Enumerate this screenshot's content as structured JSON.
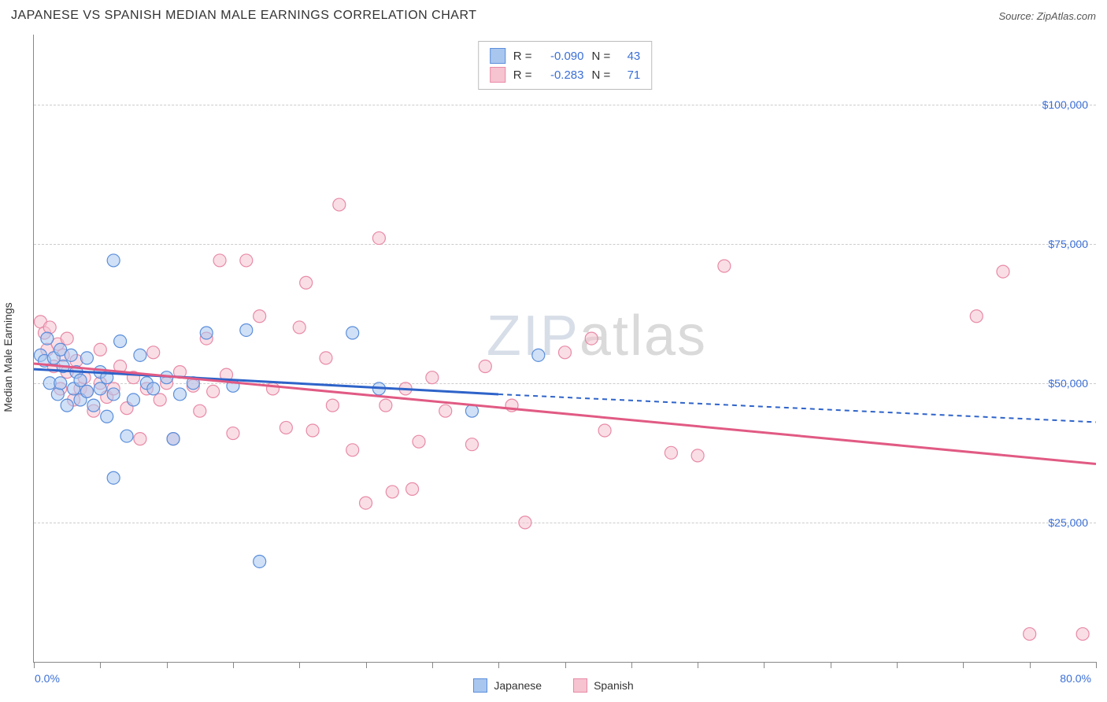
{
  "header": {
    "title": "JAPANESE VS SPANISH MEDIAN MALE EARNINGS CORRELATION CHART",
    "source_prefix": "Source: ",
    "source": "ZipAtlas.com"
  },
  "chart": {
    "type": "scatter",
    "ylabel": "Median Male Earnings",
    "xlim": [
      0,
      80
    ],
    "ylim": [
      0,
      112500
    ],
    "x_tick_positions": [
      0,
      5,
      10,
      15,
      20,
      25,
      30,
      35,
      40,
      45,
      50,
      55,
      60,
      65,
      70,
      75,
      80
    ],
    "x_tick_label_min": "0.0%",
    "x_tick_label_max": "80.0%",
    "y_gridlines": [
      {
        "value": 25000,
        "label": "$25,000"
      },
      {
        "value": 50000,
        "label": "$50,000"
      },
      {
        "value": 75000,
        "label": "$75,000"
      },
      {
        "value": 100000,
        "label": "$100,000"
      }
    ],
    "grid_color": "#cccccc",
    "axis_color": "#888888",
    "background_color": "#ffffff",
    "tick_label_color": "#3b6fd6",
    "marker_radius": 8,
    "marker_opacity": 0.55,
    "marker_stroke_width": 1.2,
    "series": [
      {
        "name": "Japanese",
        "fill": "#a9c6ef",
        "stroke": "#5a8edb",
        "line_color": "#2e63c9",
        "R": "-0.090",
        "N": "43",
        "regression": {
          "x1": 0,
          "y1": 52500,
          "x2": 35,
          "y2": 48000,
          "extend_x": 80,
          "extend_y": 43000
        },
        "points": [
          {
            "x": 6,
            "y": 72000
          },
          {
            "x": 0.5,
            "y": 55000
          },
          {
            "x": 0.8,
            "y": 54000
          },
          {
            "x": 1,
            "y": 58000
          },
          {
            "x": 1.2,
            "y": 50000
          },
          {
            "x": 1.5,
            "y": 54500
          },
          {
            "x": 1.8,
            "y": 48000
          },
          {
            "x": 2,
            "y": 56000
          },
          {
            "x": 2,
            "y": 50000
          },
          {
            "x": 2.2,
            "y": 53000
          },
          {
            "x": 2.5,
            "y": 46000
          },
          {
            "x": 2.8,
            "y": 55000
          },
          {
            "x": 3,
            "y": 49000
          },
          {
            "x": 3.2,
            "y": 52000
          },
          {
            "x": 3.5,
            "y": 47000
          },
          {
            "x": 3.5,
            "y": 50500
          },
          {
            "x": 4,
            "y": 54500
          },
          {
            "x": 4,
            "y": 48500
          },
          {
            "x": 4.5,
            "y": 46000
          },
          {
            "x": 5,
            "y": 52000
          },
          {
            "x": 5,
            "y": 49000
          },
          {
            "x": 5.5,
            "y": 44000
          },
          {
            "x": 5.5,
            "y": 51000
          },
          {
            "x": 6,
            "y": 48000
          },
          {
            "x": 6,
            "y": 33000
          },
          {
            "x": 6.5,
            "y": 57500
          },
          {
            "x": 7,
            "y": 40500
          },
          {
            "x": 7.5,
            "y": 47000
          },
          {
            "x": 8,
            "y": 55000
          },
          {
            "x": 8.5,
            "y": 50000
          },
          {
            "x": 9,
            "y": 49000
          },
          {
            "x": 10,
            "y": 51000
          },
          {
            "x": 10.5,
            "y": 40000
          },
          {
            "x": 11,
            "y": 48000
          },
          {
            "x": 12,
            "y": 50000
          },
          {
            "x": 13,
            "y": 59000
          },
          {
            "x": 15,
            "y": 49500
          },
          {
            "x": 16,
            "y": 59500
          },
          {
            "x": 17,
            "y": 18000
          },
          {
            "x": 24,
            "y": 59000
          },
          {
            "x": 26,
            "y": 49000
          },
          {
            "x": 38,
            "y": 55000
          },
          {
            "x": 33,
            "y": 45000
          }
        ]
      },
      {
        "name": "Spanish",
        "fill": "#f6c3d1",
        "stroke": "#e88aa6",
        "line_color": "#e15a84",
        "R": "-0.283",
        "N": "71",
        "regression": {
          "x1": 0,
          "y1": 53500,
          "x2": 80,
          "y2": 35500
        },
        "points": [
          {
            "x": 0.5,
            "y": 61000
          },
          {
            "x": 0.8,
            "y": 59000
          },
          {
            "x": 1,
            "y": 56000
          },
          {
            "x": 1.2,
            "y": 60000
          },
          {
            "x": 1.5,
            "y": 53000
          },
          {
            "x": 1.8,
            "y": 57000
          },
          {
            "x": 2,
            "y": 49000
          },
          {
            "x": 2.2,
            "y": 55000
          },
          {
            "x": 2.5,
            "y": 52000
          },
          {
            "x": 2.5,
            "y": 58000
          },
          {
            "x": 3,
            "y": 47000
          },
          {
            "x": 3.2,
            "y": 54000
          },
          {
            "x": 3.5,
            "y": 49000
          },
          {
            "x": 3.8,
            "y": 51000
          },
          {
            "x": 4,
            "y": 48500
          },
          {
            "x": 4.5,
            "y": 45000
          },
          {
            "x": 5,
            "y": 56000
          },
          {
            "x": 5,
            "y": 50000
          },
          {
            "x": 5.5,
            "y": 47500
          },
          {
            "x": 6,
            "y": 49000
          },
          {
            "x": 6.5,
            "y": 53000
          },
          {
            "x": 7,
            "y": 45500
          },
          {
            "x": 7.5,
            "y": 51000
          },
          {
            "x": 8,
            "y": 40000
          },
          {
            "x": 8.5,
            "y": 49000
          },
          {
            "x": 9,
            "y": 55500
          },
          {
            "x": 9.5,
            "y": 47000
          },
          {
            "x": 10,
            "y": 50000
          },
          {
            "x": 10.5,
            "y": 40000
          },
          {
            "x": 11,
            "y": 52000
          },
          {
            "x": 12,
            "y": 49500
          },
          {
            "x": 12.5,
            "y": 45000
          },
          {
            "x": 13,
            "y": 58000
          },
          {
            "x": 13.5,
            "y": 48500
          },
          {
            "x": 14,
            "y": 72000
          },
          {
            "x": 14.5,
            "y": 51500
          },
          {
            "x": 15,
            "y": 41000
          },
          {
            "x": 16,
            "y": 72000
          },
          {
            "x": 17,
            "y": 62000
          },
          {
            "x": 18,
            "y": 49000
          },
          {
            "x": 19,
            "y": 42000
          },
          {
            "x": 20,
            "y": 60000
          },
          {
            "x": 20.5,
            "y": 68000
          },
          {
            "x": 21,
            "y": 41500
          },
          {
            "x": 22,
            "y": 54500
          },
          {
            "x": 22.5,
            "y": 46000
          },
          {
            "x": 23,
            "y": 82000
          },
          {
            "x": 24,
            "y": 38000
          },
          {
            "x": 25,
            "y": 28500
          },
          {
            "x": 26,
            "y": 76000
          },
          {
            "x": 26.5,
            "y": 46000
          },
          {
            "x": 27,
            "y": 30500
          },
          {
            "x": 28,
            "y": 49000
          },
          {
            "x": 28.5,
            "y": 31000
          },
          {
            "x": 29,
            "y": 39500
          },
          {
            "x": 30,
            "y": 51000
          },
          {
            "x": 31,
            "y": 45000
          },
          {
            "x": 33,
            "y": 39000
          },
          {
            "x": 34,
            "y": 53000
          },
          {
            "x": 36,
            "y": 46000
          },
          {
            "x": 37,
            "y": 25000
          },
          {
            "x": 40,
            "y": 55500
          },
          {
            "x": 42,
            "y": 58000
          },
          {
            "x": 43,
            "y": 41500
          },
          {
            "x": 48,
            "y": 37500
          },
          {
            "x": 50,
            "y": 37000
          },
          {
            "x": 52,
            "y": 71000
          },
          {
            "x": 71,
            "y": 62000
          },
          {
            "x": 73,
            "y": 70000
          },
          {
            "x": 75,
            "y": 5000
          },
          {
            "x": 79,
            "y": 5000
          }
        ]
      }
    ]
  },
  "watermark": {
    "part1": "ZIP",
    "part2": "atlas"
  },
  "stat_box": {
    "r_label": "R =",
    "n_label": "N ="
  }
}
